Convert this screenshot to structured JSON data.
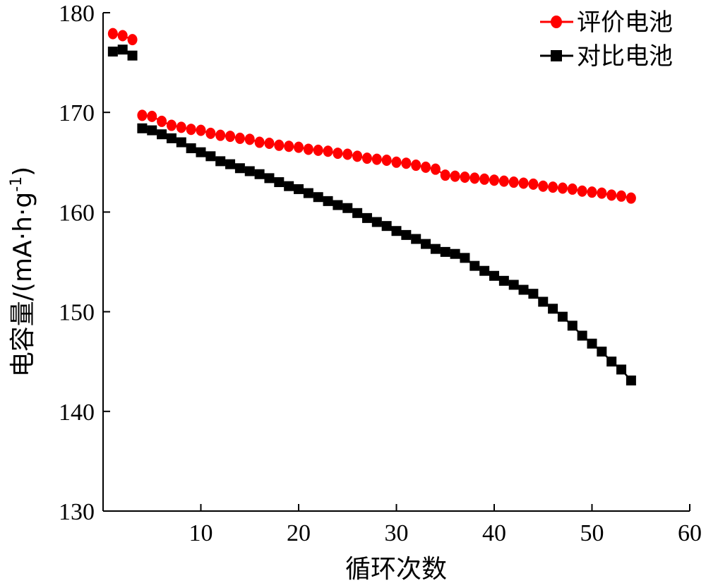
{
  "chart_data": {
    "type": "line",
    "xlabel": "循环次数",
    "ylabel_main": "电容量/(mA·h·g",
    "ylabel_sup": "-1",
    "ylabel_close": ")",
    "xlim": [
      0,
      60
    ],
    "ylim": [
      130,
      180
    ],
    "x_ticks": [
      10,
      20,
      30,
      40,
      50,
      60
    ],
    "y_ticks": [
      130,
      140,
      150,
      160,
      170,
      180
    ],
    "grid": false,
    "legend_position": "top-right",
    "series": [
      {
        "name": "评价电池",
        "color": "#ff0000",
        "marker": "circle",
        "x": [
          1,
          2,
          3,
          4,
          5,
          6,
          7,
          8,
          9,
          10,
          11,
          12,
          13,
          14,
          15,
          16,
          17,
          18,
          19,
          20,
          21,
          22,
          23,
          24,
          25,
          26,
          27,
          28,
          29,
          30,
          31,
          32,
          33,
          34,
          35,
          36,
          37,
          38,
          39,
          40,
          41,
          42,
          43,
          44,
          45,
          46,
          47,
          48,
          49,
          50,
          51,
          52,
          53,
          54
        ],
        "y": [
          177.9,
          177.7,
          177.3,
          169.7,
          169.6,
          169.1,
          168.7,
          168.5,
          168.3,
          168.2,
          167.9,
          167.7,
          167.6,
          167.4,
          167.3,
          167.0,
          166.9,
          166.7,
          166.6,
          166.5,
          166.3,
          166.2,
          166.1,
          165.9,
          165.8,
          165.6,
          165.4,
          165.3,
          165.2,
          165.0,
          164.9,
          164.7,
          164.5,
          164.3,
          163.7,
          163.6,
          163.5,
          163.4,
          163.3,
          163.2,
          163.1,
          163.0,
          162.9,
          162.8,
          162.6,
          162.5,
          162.4,
          162.3,
          162.1,
          162.0,
          161.9,
          161.7,
          161.6,
          161.4
        ]
      },
      {
        "name": "对比电池",
        "color": "#000000",
        "marker": "square",
        "x": [
          1,
          2,
          3,
          4,
          5,
          6,
          7,
          8,
          9,
          10,
          11,
          12,
          13,
          14,
          15,
          16,
          17,
          18,
          19,
          20,
          21,
          22,
          23,
          24,
          25,
          26,
          27,
          28,
          29,
          30,
          31,
          32,
          33,
          34,
          35,
          36,
          37,
          38,
          39,
          40,
          41,
          42,
          43,
          44,
          45,
          46,
          47,
          48,
          49,
          50,
          51,
          52,
          53,
          54
        ],
        "y": [
          176.1,
          176.3,
          175.7,
          168.4,
          168.2,
          167.8,
          167.4,
          167.0,
          166.4,
          166.0,
          165.6,
          165.1,
          164.8,
          164.4,
          164.1,
          163.8,
          163.4,
          163.0,
          162.6,
          162.3,
          161.9,
          161.5,
          161.1,
          160.7,
          160.4,
          159.9,
          159.4,
          159.0,
          158.6,
          158.1,
          157.7,
          157.3,
          156.8,
          156.3,
          156.0,
          155.8,
          155.4,
          154.6,
          154.1,
          153.6,
          153.1,
          152.7,
          152.2,
          151.8,
          151.0,
          150.3,
          149.5,
          148.6,
          147.6,
          146.8,
          146.0,
          145.0,
          144.2,
          143.1
        ]
      }
    ]
  }
}
